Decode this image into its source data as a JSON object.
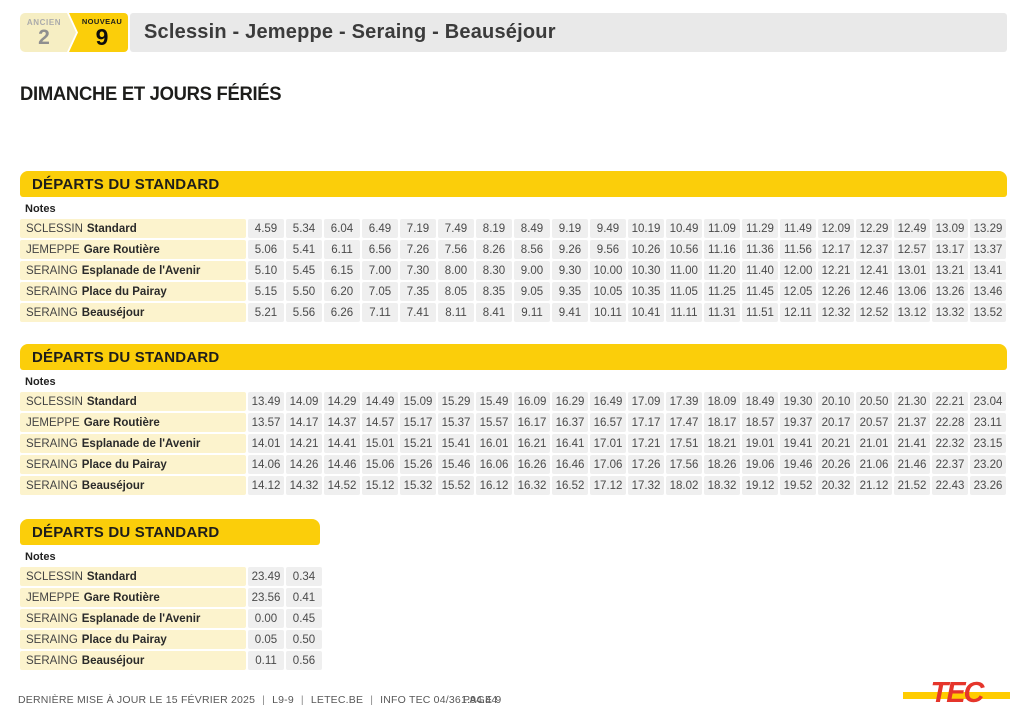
{
  "header": {
    "ancien_label": "ANCIEN",
    "ancien_number": "2",
    "nouveau_label": "NOUVEAU",
    "nouveau_number": "9",
    "title": "Sclessin - Jemeppe - Seraing - Beauséjour"
  },
  "day_heading": "DIMANCHE ET JOURS FÉRIÉS",
  "tables": [
    {
      "header": "DÉPARTS DU STANDARD",
      "notes_label": "Notes",
      "rows": [
        {
          "place": "SCLESSIN",
          "stop": "Standard",
          "times": [
            "4.59",
            "5.34",
            "6.04",
            "6.49",
            "7.19",
            "7.49",
            "8.19",
            "8.49",
            "9.19",
            "9.49",
            "10.19",
            "10.49",
            "11.09",
            "11.29",
            "11.49",
            "12.09",
            "12.29",
            "12.49",
            "13.09",
            "13.29"
          ]
        },
        {
          "place": "JEMEPPE",
          "stop": "Gare Routière",
          "times": [
            "5.06",
            "5.41",
            "6.11",
            "6.56",
            "7.26",
            "7.56",
            "8.26",
            "8.56",
            "9.26",
            "9.56",
            "10.26",
            "10.56",
            "11.16",
            "11.36",
            "11.56",
            "12.17",
            "12.37",
            "12.57",
            "13.17",
            "13.37"
          ]
        },
        {
          "place": "SERAING",
          "stop": "Esplanade de l'Avenir",
          "times": [
            "5.10",
            "5.45",
            "6.15",
            "7.00",
            "7.30",
            "8.00",
            "8.30",
            "9.00",
            "9.30",
            "10.00",
            "10.30",
            "11.00",
            "11.20",
            "11.40",
            "12.00",
            "12.21",
            "12.41",
            "13.01",
            "13.21",
            "13.41"
          ]
        },
        {
          "place": "SERAING",
          "stop": "Place du Pairay",
          "times": [
            "5.15",
            "5.50",
            "6.20",
            "7.05",
            "7.35",
            "8.05",
            "8.35",
            "9.05",
            "9.35",
            "10.05",
            "10.35",
            "11.05",
            "11.25",
            "11.45",
            "12.05",
            "12.26",
            "12.46",
            "13.06",
            "13.26",
            "13.46"
          ]
        },
        {
          "place": "SERAING",
          "stop": "Beauséjour",
          "times": [
            "5.21",
            "5.56",
            "6.26",
            "7.11",
            "7.41",
            "8.11",
            "8.41",
            "9.11",
            "9.41",
            "10.11",
            "10.41",
            "11.11",
            "11.31",
            "11.51",
            "12.11",
            "12.32",
            "12.52",
            "13.12",
            "13.32",
            "13.52"
          ]
        }
      ]
    },
    {
      "header": "DÉPARTS DU STANDARD",
      "notes_label": "Notes",
      "rows": [
        {
          "place": "SCLESSIN",
          "stop": "Standard",
          "times": [
            "13.49",
            "14.09",
            "14.29",
            "14.49",
            "15.09",
            "15.29",
            "15.49",
            "16.09",
            "16.29",
            "16.49",
            "17.09",
            "17.39",
            "18.09",
            "18.49",
            "19.30",
            "20.10",
            "20.50",
            "21.30",
            "22.21",
            "23.04"
          ]
        },
        {
          "place": "JEMEPPE",
          "stop": "Gare Routière",
          "times": [
            "13.57",
            "14.17",
            "14.37",
            "14.57",
            "15.17",
            "15.37",
            "15.57",
            "16.17",
            "16.37",
            "16.57",
            "17.17",
            "17.47",
            "18.17",
            "18.57",
            "19.37",
            "20.17",
            "20.57",
            "21.37",
            "22.28",
            "23.11"
          ]
        },
        {
          "place": "SERAING",
          "stop": "Esplanade de l'Avenir",
          "times": [
            "14.01",
            "14.21",
            "14.41",
            "15.01",
            "15.21",
            "15.41",
            "16.01",
            "16.21",
            "16.41",
            "17.01",
            "17.21",
            "17.51",
            "18.21",
            "19.01",
            "19.41",
            "20.21",
            "21.01",
            "21.41",
            "22.32",
            "23.15"
          ]
        },
        {
          "place": "SERAING",
          "stop": "Place du Pairay",
          "times": [
            "14.06",
            "14.26",
            "14.46",
            "15.06",
            "15.26",
            "15.46",
            "16.06",
            "16.26",
            "16.46",
            "17.06",
            "17.26",
            "17.56",
            "18.26",
            "19.06",
            "19.46",
            "20.26",
            "21.06",
            "21.46",
            "22.37",
            "23.20"
          ]
        },
        {
          "place": "SERAING",
          "stop": "Beauséjour",
          "times": [
            "14.12",
            "14.32",
            "14.52",
            "15.12",
            "15.32",
            "15.52",
            "16.12",
            "16.32",
            "16.52",
            "17.12",
            "17.32",
            "18.02",
            "18.32",
            "19.12",
            "19.52",
            "20.32",
            "21.12",
            "21.52",
            "22.43",
            "23.26"
          ]
        }
      ]
    },
    {
      "header": "DÉPARTS DU STANDARD",
      "notes_label": "Notes",
      "rows": [
        {
          "place": "SCLESSIN",
          "stop": "Standard",
          "times": [
            "23.49",
            "0.34"
          ]
        },
        {
          "place": "JEMEPPE",
          "stop": "Gare Routière",
          "times": [
            "23.56",
            "0.41"
          ]
        },
        {
          "place": "SERAING",
          "stop": "Esplanade de l'Avenir",
          "times": [
            "0.00",
            "0.45"
          ]
        },
        {
          "place": "SERAING",
          "stop": "Place du Pairay",
          "times": [
            "0.05",
            "0.50"
          ]
        },
        {
          "place": "SERAING",
          "stop": "Beauséjour",
          "times": [
            "0.11",
            "0.56"
          ]
        }
      ]
    }
  ],
  "footer": {
    "updated": "DERNIÈRE MISE À JOUR LE 15 FÉVRIER 2025",
    "separator": "|",
    "line_ref": "L9-9",
    "site": "LETEC.BE",
    "info": "INFO TEC 04/361.94.44",
    "page": "PAGE 9",
    "logo_text": "TEC"
  },
  "colors": {
    "brand_yellow": "#FBCE0A",
    "pale_yellow_cell": "#FCF3CD",
    "ancien_badge_yellow": "#F6EEC3",
    "time_cell_gray": "#EFEFEF",
    "title_bar_gray": "#E9E9E9",
    "logo_red": "#E5352B",
    "logo_stripe_yellow": "#FFCC00"
  }
}
